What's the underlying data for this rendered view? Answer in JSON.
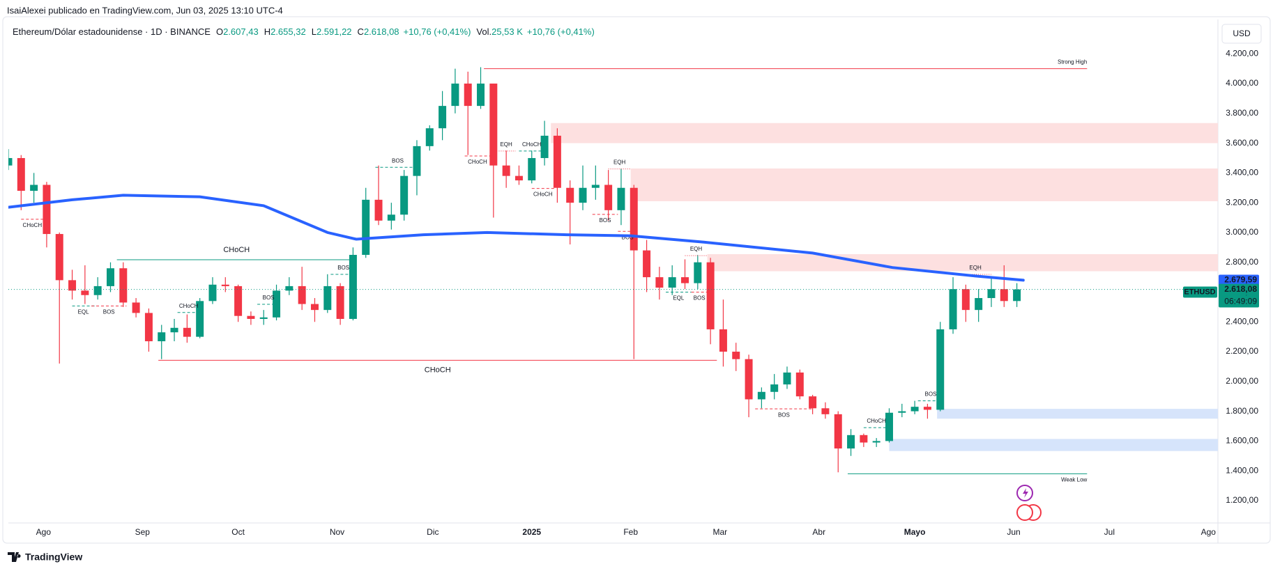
{
  "header": {
    "publisher": "IsaiAlexei publicado en TradingView.com, Jun 03, 2025 13:10 UTC-4",
    "symbol": "Ethereum/Dólar estadounidense · 1D · BINANCE",
    "quote": [
      {
        "label": "O",
        "value": "2.607,43"
      },
      {
        "label": "H",
        "value": "2.655,32"
      },
      {
        "label": "L",
        "value": "2.591,22"
      },
      {
        "label": "C",
        "value": "2.618,08"
      }
    ],
    "change": "+10,76 (+0,41%)",
    "volume_label": "Vol.",
    "volume": "25,53 K",
    "volume_change": "+10,76 (+0,41%)",
    "currency": "USD"
  },
  "footer": {
    "brand": "TradingView"
  },
  "chart_data": {
    "type": "candlestick",
    "up_color": "#089981",
    "down_color": "#f23645",
    "grid": false,
    "xlim": [
      0,
      379
    ],
    "ylim": [
      1050,
      4290
    ],
    "xticks": [
      {
        "value": 11,
        "label": "Ago"
      },
      {
        "value": 42,
        "label": "Sep"
      },
      {
        "value": 72,
        "label": "Oct"
      },
      {
        "value": 103,
        "label": "Nov"
      },
      {
        "value": 133,
        "label": "Dic"
      },
      {
        "value": 164,
        "label": "2025"
      },
      {
        "value": 195,
        "label": "Feb"
      },
      {
        "value": 223,
        "label": "Mar"
      },
      {
        "value": 254,
        "label": "Abr"
      },
      {
        "value": 284,
        "label": "Mayo"
      },
      {
        "value": 315,
        "label": "Jun"
      },
      {
        "value": 345,
        "label": "Jul"
      },
      {
        "value": 376,
        "label": "Ago"
      }
    ],
    "yticks": [
      {
        "value": 1200,
        "label": "1.200,00"
      },
      {
        "value": 1400,
        "label": "1.400,00"
      },
      {
        "value": 1600,
        "label": "1.600,00"
      },
      {
        "value": 1800,
        "label": "1.800,00"
      },
      {
        "value": 2000,
        "label": "2.000,00"
      },
      {
        "value": 2200,
        "label": "2.200,00"
      },
      {
        "value": 2400,
        "label": "2.400,00"
      },
      {
        "value": 2600,
        "label": "2.600,00"
      },
      {
        "value": 2800,
        "label": "2.800,00"
      },
      {
        "value": 3000,
        "label": "3.000,00"
      },
      {
        "value": 3200,
        "label": "3.200,00"
      },
      {
        "value": 3400,
        "label": "3.400,00"
      },
      {
        "value": 3600,
        "label": "3.600,00"
      },
      {
        "value": 3800,
        "label": "3.800,00"
      },
      {
        "value": 4000,
        "label": "4.000,00"
      },
      {
        "value": 4200,
        "label": "4.200,00"
      }
    ],
    "x": [
      0,
      4,
      8,
      12,
      16,
      20,
      24,
      28,
      32,
      36,
      40,
      44,
      48,
      52,
      56,
      60,
      64,
      68,
      72,
      76,
      80,
      84,
      88,
      92,
      96,
      100,
      104,
      108,
      112,
      116,
      120,
      124,
      128,
      132,
      136,
      140,
      144,
      148,
      152,
      156,
      160,
      164,
      168,
      172,
      176,
      180,
      184,
      188,
      192,
      196,
      200,
      204,
      208,
      212,
      216,
      220,
      224,
      228,
      232,
      236,
      240,
      244,
      248,
      252,
      256,
      260,
      264,
      268,
      272,
      276,
      280,
      284,
      288,
      292,
      296,
      300,
      304,
      308,
      312,
      316
    ],
    "ohlc": [
      [
        3450,
        3560,
        3420,
        3500
      ],
      [
        3500,
        3520,
        3150,
        3280
      ],
      [
        3280,
        3400,
        3200,
        3320
      ],
      [
        3320,
        3340,
        2900,
        2990
      ],
      [
        2990,
        3000,
        2120,
        2680
      ],
      [
        2680,
        2750,
        2550,
        2610
      ],
      [
        2610,
        2780,
        2520,
        2580
      ],
      [
        2580,
        2700,
        2550,
        2640
      ],
      [
        2640,
        2800,
        2600,
        2760
      ],
      [
        2760,
        2800,
        2500,
        2530
      ],
      [
        2530,
        2560,
        2430,
        2460
      ],
      [
        2460,
        2490,
        2200,
        2270
      ],
      [
        2270,
        2380,
        2150,
        2330
      ],
      [
        2330,
        2420,
        2270,
        2360
      ],
      [
        2360,
        2450,
        2260,
        2300
      ],
      [
        2300,
        2560,
        2290,
        2540
      ],
      [
        2540,
        2700,
        2520,
        2650
      ],
      [
        2650,
        2700,
        2600,
        2640
      ],
      [
        2640,
        2650,
        2400,
        2440
      ],
      [
        2440,
        2470,
        2380,
        2420
      ],
      [
        2420,
        2480,
        2380,
        2430
      ],
      [
        2430,
        2650,
        2410,
        2610
      ],
      [
        2610,
        2700,
        2580,
        2640
      ],
      [
        2640,
        2770,
        2480,
        2520
      ],
      [
        2520,
        2560,
        2400,
        2480
      ],
      [
        2480,
        2720,
        2460,
        2640
      ],
      [
        2640,
        2660,
        2380,
        2420
      ],
      [
        2420,
        2900,
        2410,
        2850
      ],
      [
        2850,
        3300,
        2830,
        3220
      ],
      [
        3220,
        3450,
        3050,
        3080
      ],
      [
        3080,
        3200,
        3020,
        3120
      ],
      [
        3120,
        3420,
        3080,
        3380
      ],
      [
        3380,
        3620,
        3250,
        3580
      ],
      [
        3580,
        3720,
        3550,
        3700
      ],
      [
        3700,
        3950,
        3620,
        3850
      ],
      [
        3850,
        4100,
        3800,
        4000
      ],
      [
        4000,
        4080,
        3520,
        3850
      ],
      [
        3850,
        4110,
        3830,
        4000
      ],
      [
        4000,
        4000,
        3100,
        3450
      ],
      [
        3450,
        3550,
        3300,
        3380
      ],
      [
        3380,
        3450,
        3320,
        3350
      ],
      [
        3350,
        3550,
        3330,
        3500
      ],
      [
        3500,
        3750,
        3450,
        3650
      ],
      [
        3650,
        3700,
        3200,
        3300
      ],
      [
        3300,
        3350,
        2920,
        3200
      ],
      [
        3200,
        3450,
        3150,
        3300
      ],
      [
        3300,
        3450,
        3220,
        3320
      ],
      [
        3320,
        3420,
        3080,
        3150
      ],
      [
        3150,
        3430,
        3050,
        3300
      ],
      [
        3300,
        3320,
        2150,
        2880
      ],
      [
        2880,
        2950,
        2600,
        2700
      ],
      [
        2700,
        2770,
        2550,
        2630
      ],
      [
        2630,
        2780,
        2580,
        2700
      ],
      [
        2700,
        2820,
        2620,
        2660
      ],
      [
        2660,
        2850,
        2620,
        2800
      ],
      [
        2800,
        2830,
        2250,
        2350
      ],
      [
        2350,
        2550,
        2100,
        2200
      ],
      [
        2200,
        2260,
        2070,
        2150
      ],
      [
        2150,
        2180,
        1760,
        1880
      ],
      [
        1880,
        1960,
        1820,
        1930
      ],
      [
        1930,
        2050,
        1880,
        1980
      ],
      [
        1980,
        2100,
        1950,
        2060
      ],
      [
        2060,
        2080,
        1880,
        1900
      ],
      [
        1900,
        1910,
        1780,
        1820
      ],
      [
        1820,
        1860,
        1750,
        1780
      ],
      [
        1780,
        1800,
        1390,
        1550
      ],
      [
        1550,
        1680,
        1500,
        1640
      ],
      [
        1640,
        1650,
        1560,
        1590
      ],
      [
        1590,
        1620,
        1560,
        1600
      ],
      [
        1600,
        1820,
        1590,
        1790
      ],
      [
        1790,
        1850,
        1760,
        1800
      ],
      [
        1800,
        1870,
        1780,
        1830
      ],
      [
        1830,
        1850,
        1750,
        1810
      ],
      [
        1810,
        2400,
        1800,
        2350
      ],
      [
        2350,
        2700,
        2320,
        2620
      ],
      [
        2620,
        2650,
        2400,
        2480
      ],
      [
        2480,
        2620,
        2400,
        2560
      ],
      [
        2560,
        2700,
        2500,
        2620
      ],
      [
        2620,
        2780,
        2500,
        2540
      ],
      [
        2540,
        2660,
        2500,
        2618
      ]
    ],
    "ma": {
      "color": "#2962ff",
      "x": [
        0,
        20,
        36,
        60,
        80,
        100,
        109,
        130,
        150,
        175,
        195,
        218,
        252,
        277,
        303,
        318
      ],
      "values": [
        3170,
        3220,
        3250,
        3240,
        3180,
        3000,
        2955,
        2985,
        3000,
        2985,
        2978,
        2935,
        2862,
        2765,
        2708,
        2680
      ],
      "badge": {
        "value": 2679.59,
        "label": "2.679,59"
      }
    },
    "last": {
      "value": 2618.08,
      "label": "2.618,08",
      "symbol": "ETHUSD",
      "countdown": "06:49:09"
    },
    "zones": [
      {
        "from": 170,
        "low": 3600,
        "high": 3735,
        "color": "#fde0e0"
      },
      {
        "from": 195,
        "low": 3210,
        "high": 3430,
        "color": "#fde0e0"
      },
      {
        "from": 219,
        "low": 2740,
        "high": 2855,
        "color": "#fde0e0"
      },
      {
        "from": 291,
        "low": 1750,
        "high": 1816,
        "color": "#d6e4fb"
      },
      {
        "from": 276,
        "low": 1533,
        "high": 1614,
        "color": "#d6e4fb"
      }
    ],
    "annotations": [
      {
        "text": "Strong High",
        "price": 4100,
        "x1": 149,
        "x2": 338,
        "color": "#f23645",
        "style": "solid",
        "pos": "above-end"
      },
      {
        "text": "Weak Low",
        "price": 1380,
        "x1": 263,
        "x2": 338,
        "color": "#089981",
        "style": "solid",
        "pos": "below-end"
      },
      {
        "text": "CHoCH",
        "price": 2817,
        "x1": 34,
        "x2": 109,
        "color": "#089981",
        "style": "solid",
        "pos": "above",
        "size": "large"
      },
      {
        "text": "CHoCH",
        "price": 2142,
        "x1": 47,
        "x2": 222,
        "color": "#f23645",
        "style": "solid",
        "pos": "below",
        "size": "large"
      },
      {
        "text": "CHoCH",
        "price": 3089,
        "x1": 4,
        "x2": 11,
        "color": "#f23645",
        "style": "dashed",
        "pos": "below"
      },
      {
        "text": "EQL",
        "price": 2507,
        "x1": 20,
        "x2": 27,
        "color": "#089981",
        "style": "dashed",
        "pos": "below"
      },
      {
        "text": "BOS",
        "price": 2507,
        "x1": 26,
        "x2": 37,
        "color": "#f23645",
        "style": "dashed",
        "pos": "below"
      },
      {
        "text": "CHoCH",
        "price": 2463,
        "x1": 53,
        "x2": 60,
        "color": "#089981",
        "style": "dashed",
        "pos": "above"
      },
      {
        "text": "BOS",
        "price": 2518,
        "x1": 78,
        "x2": 85,
        "color": "#089981",
        "style": "dashed",
        "pos": "above"
      },
      {
        "text": "BOS",
        "price": 2719,
        "x1": 101,
        "x2": 109,
        "color": "#089981",
        "style": "dashed",
        "pos": "above"
      },
      {
        "text": "BOS",
        "price": 3438,
        "x1": 115,
        "x2": 129,
        "color": "#089981",
        "style": "dashed",
        "pos": "above"
      },
      {
        "text": "CHoCH",
        "price": 3514,
        "x1": 143,
        "x2": 151,
        "color": "#f23645",
        "style": "dashed",
        "pos": "below"
      },
      {
        "text": "EQH",
        "price": 3547,
        "x1": 153,
        "x2": 159,
        "color": "#f23645",
        "style": "dotted",
        "pos": "above"
      },
      {
        "text": "CHoCH",
        "price": 3547,
        "x1": 160,
        "x2": 168,
        "color": "#089981",
        "style": "dashed",
        "pos": "above"
      },
      {
        "text": "CHoCH",
        "price": 3296,
        "x1": 164,
        "x2": 171,
        "color": "#f23645",
        "style": "dashed",
        "pos": "below"
      },
      {
        "text": "EQH",
        "price": 3427,
        "x1": 188,
        "x2": 195,
        "color": "#f23645",
        "style": "dotted",
        "pos": "above"
      },
      {
        "text": "BOS",
        "price": 3122,
        "x1": 183,
        "x2": 191,
        "color": "#f23645",
        "style": "dashed",
        "pos": "below"
      },
      {
        "text": "BOS",
        "price": 3008,
        "x1": 191,
        "x2": 197,
        "color": "#f23645",
        "style": "dashed",
        "pos": "below"
      },
      {
        "text": "EQH",
        "price": 2845,
        "x1": 212,
        "x2": 219,
        "color": "#f23645",
        "style": "dotted",
        "pos": "above"
      },
      {
        "text": "EQL",
        "price": 2600,
        "x1": 206,
        "x2": 214,
        "color": "#089981",
        "style": "dashed",
        "pos": "below"
      },
      {
        "text": "BOS",
        "price": 2600,
        "x1": 214,
        "x2": 219,
        "color": "#f23645",
        "style": "dashed",
        "pos": "below"
      },
      {
        "text": "BOS",
        "price": 1816,
        "x1": 234,
        "x2": 252,
        "color": "#f23645",
        "style": "dashed",
        "pos": "below"
      },
      {
        "text": "CHoCH",
        "price": 1690,
        "x1": 268,
        "x2": 276,
        "color": "#089981",
        "style": "dashed",
        "pos": "above"
      },
      {
        "text": "BOS",
        "price": 1870,
        "x1": 285,
        "x2": 293,
        "color": "#089981",
        "style": "dashed",
        "pos": "above"
      },
      {
        "text": "EQH",
        "price": 2719,
        "x1": 298,
        "x2": 308,
        "color": "#f23645",
        "style": "dotted",
        "pos": "above"
      }
    ]
  }
}
